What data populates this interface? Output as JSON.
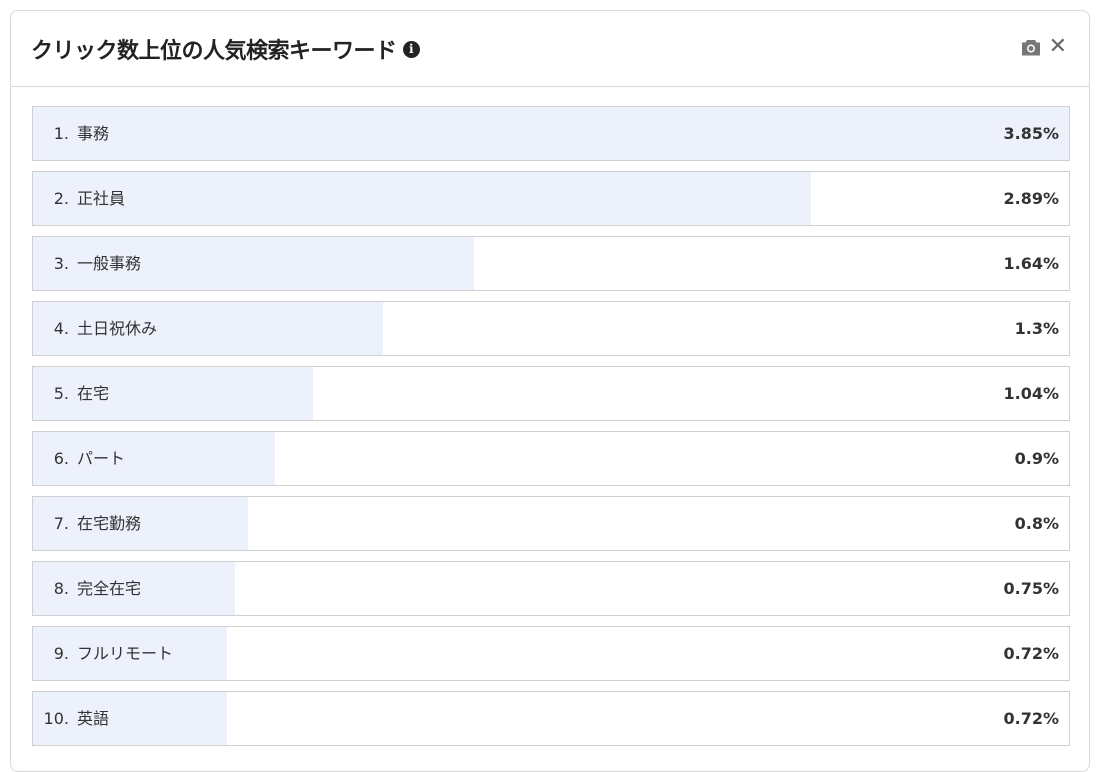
{
  "header": {
    "title": "クリック数上位の人気検索キーワード",
    "info_icon": "info-icon",
    "camera_icon": "camera-icon",
    "close_icon": "close-icon"
  },
  "colors": {
    "bar_fill": "#edf1fc"
  },
  "items": [
    {
      "rank": "1.",
      "keyword": "事務",
      "value": 3.85,
      "display": "3.85%"
    },
    {
      "rank": "2.",
      "keyword": "正社員",
      "value": 2.89,
      "display": "2.89%"
    },
    {
      "rank": "3.",
      "keyword": "一般事務",
      "value": 1.64,
      "display": "1.64%"
    },
    {
      "rank": "4.",
      "keyword": "土日祝休み",
      "value": 1.3,
      "display": "1.3%"
    },
    {
      "rank": "5.",
      "keyword": "在宅",
      "value": 1.04,
      "display": "1.04%"
    },
    {
      "rank": "6.",
      "keyword": "パート",
      "value": 0.9,
      "display": "0.9%"
    },
    {
      "rank": "7.",
      "keyword": "在宅勤務",
      "value": 0.8,
      "display": "0.8%"
    },
    {
      "rank": "8.",
      "keyword": "完全在宅",
      "value": 0.75,
      "display": "0.75%"
    },
    {
      "rank": "9.",
      "keyword": "フルリモート",
      "value": 0.72,
      "display": "0.72%"
    },
    {
      "rank": "10.",
      "keyword": "英語",
      "value": 0.72,
      "display": "0.72%"
    }
  ]
}
